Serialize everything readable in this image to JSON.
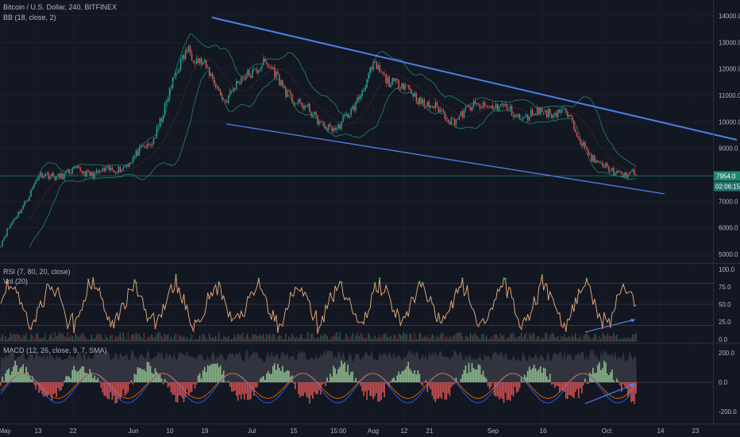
{
  "title": "Bitcoin / U.S. Dollar, 240, BITFINEX",
  "indicators": {
    "bb": "BB (18, close, 2)",
    "rsi": "RSI (7, 80, 20, close)",
    "vol": "Vol (20)",
    "macd": "MACD (12, 26, close, 9, 7, SMA)"
  },
  "colors": {
    "background": "#131722",
    "candle_up": "#26a69a",
    "candle_down": "#ef5350",
    "trendline": "#4d7fe6",
    "bollinger": "#1e8a6d",
    "rsi_line": "#f0b27a",
    "macd_line": "#2962ff",
    "signal_line": "#ff6d00",
    "last_price_tag": "#1e8a6d",
    "timer_tag": "#22726a"
  },
  "price_axis": {
    "ticks": [
      "14000.0",
      "13000.0",
      "12000.0",
      "11000.0",
      "10000.0",
      "9000.0",
      "8000.0",
      "7000.0",
      "6000.0",
      "5000.0"
    ]
  },
  "last_price": "7954.0",
  "countdown": "02:06:15",
  "rsi_axis": {
    "ticks": [
      "100.0",
      "75.0",
      "50.0",
      "25.0",
      "0.0"
    ]
  },
  "macd_axis": {
    "ticks": [
      "200.0",
      "0.0",
      "-200.0"
    ]
  },
  "time_axis": {
    "labels": [
      "May",
      "13",
      "22",
      "Jun",
      "10",
      "19",
      "Jul",
      "15",
      "15:00",
      "Aug",
      "12",
      "21",
      "Sep",
      "16",
      "Oct",
      "14",
      "23"
    ]
  },
  "chart_data": [
    {
      "type": "candlestick",
      "title": "Bitcoin / U.S. Dollar, 240, BITFINEX",
      "ylim": [
        4700,
        14600
      ],
      "x": [
        "May",
        "13",
        "22",
        "Jun",
        "10",
        "19",
        "Jul",
        "15",
        "Aug",
        "12",
        "21",
        "Sep",
        "16",
        "Oct"
      ],
      "close_path": [
        5400,
        7900,
        8100,
        8100,
        9100,
        12900,
        10900,
        12300,
        10600,
        9600,
        12000,
        11100,
        10100,
        10700,
        10200,
        10500,
        8300,
        7950
      ],
      "trendlines": [
        {
          "from": [
            14200
          ],
          "to": [
            9300
          ]
        },
        {
          "from": [
            9950
          ],
          "to": [
            7100
          ]
        }
      ],
      "last_price": 7954.0
    },
    {
      "type": "line",
      "title": "RSI (7, 80, 20, close)",
      "ylim": [
        0,
        100
      ],
      "levels": [
        80,
        50,
        20
      ],
      "last_value": 35
    },
    {
      "type": "bar",
      "title": "MACD (12, 26, close, 9, 7, SMA)",
      "ylim": [
        -280,
        260
      ],
      "zero_line": 0
    }
  ]
}
